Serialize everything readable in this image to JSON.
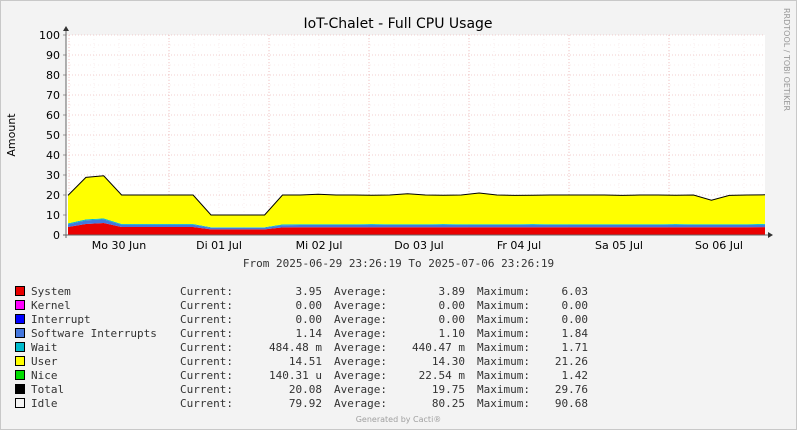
{
  "chart_data": {
    "type": "area",
    "title": "IoT-Chalet - Full CPU Usage",
    "ylabel": "Amount",
    "ylim": [
      0,
      100
    ],
    "yticks": [
      0,
      10,
      20,
      30,
      40,
      50,
      60,
      70,
      80,
      90,
      100
    ],
    "x_ticks": [
      "Mo 30 Jun",
      "Di 01 Jul",
      "Mi 02 Jul",
      "Do 03 Jul",
      "Fr 04 Jul",
      "Sa 05 Jul",
      "So 06 Jul"
    ],
    "x_range": [
      "2025-06-29 23:26:19",
      "2025-07-06 23:26:19"
    ],
    "grid": true,
    "side_text": "RRDTOOL / TOBI OETIKER",
    "series": [
      {
        "name": "System",
        "color": "#ea0000",
        "values": [
          4.0,
          5.5,
          6.0,
          4.0,
          4.0,
          4.0,
          4.0,
          4.0,
          2.8,
          2.8,
          2.8,
          2.8,
          3.8,
          3.9,
          3.9,
          3.9,
          3.9,
          3.9,
          3.9,
          3.9,
          3.9,
          3.9,
          3.9,
          3.9,
          3.9,
          3.9,
          3.9,
          3.9,
          3.9,
          3.9,
          3.9,
          3.9,
          3.9,
          3.9,
          3.9,
          3.9,
          3.9,
          3.9,
          3.9,
          3.95
        ]
      },
      {
        "name": "Kernel",
        "color": "#ff00ff",
        "values": [
          0,
          0,
          0,
          0,
          0,
          0,
          0,
          0,
          0,
          0,
          0,
          0,
          0,
          0,
          0,
          0,
          0,
          0,
          0,
          0,
          0,
          0,
          0,
          0,
          0,
          0,
          0,
          0,
          0,
          0,
          0,
          0,
          0,
          0,
          0,
          0,
          0,
          0,
          0,
          0
        ]
      },
      {
        "name": "Interrupt",
        "color": "#0000ff",
        "values": [
          0,
          0,
          0,
          0,
          0,
          0,
          0,
          0,
          0,
          0,
          0,
          0,
          0,
          0,
          0,
          0,
          0,
          0,
          0,
          0,
          0,
          0,
          0,
          0,
          0,
          0,
          0,
          0,
          0,
          0,
          0,
          0,
          0,
          0,
          0,
          0,
          0,
          0,
          0,
          0
        ]
      },
      {
        "name": "Software Interrupts",
        "color": "#4477dd",
        "values": [
          1.3,
          1.8,
          1.8,
          1.1,
          1.1,
          1.1,
          1.1,
          1.1,
          0.8,
          0.8,
          0.8,
          0.8,
          1.1,
          1.1,
          1.1,
          1.1,
          1.1,
          1.2,
          1.1,
          1.1,
          1.1,
          1.2,
          1.1,
          1.1,
          1.1,
          1.1,
          1.2,
          1.1,
          1.1,
          1.1,
          1.1,
          1.1,
          1.1,
          1.1,
          1.2,
          1.1,
          1.1,
          1.1,
          1.1,
          1.14
        ]
      },
      {
        "name": "Wait",
        "color": "#00bbcc",
        "values": [
          0.5,
          0.5,
          0.5,
          0.4,
          0.4,
          0.4,
          0.4,
          0.4,
          0.3,
          0.3,
          0.3,
          0.3,
          0.4,
          0.4,
          0.4,
          0.4,
          0.4,
          0.4,
          0.4,
          0.4,
          0.4,
          0.4,
          0.4,
          0.4,
          0.4,
          0.4,
          0.4,
          0.4,
          0.4,
          0.4,
          0.4,
          0.4,
          0.4,
          0.4,
          0.4,
          0.4,
          0.4,
          0.4,
          0.4,
          0.48
        ]
      },
      {
        "name": "User",
        "color": "#ffff00",
        "values": [
          14.0,
          21.0,
          21.3,
          14.5,
          14.5,
          14.5,
          14.5,
          14.5,
          6.1,
          6.1,
          6.1,
          6.1,
          14.6,
          14.6,
          15.0,
          14.6,
          14.6,
          14.4,
          14.6,
          15.2,
          14.6,
          14.4,
          14.6,
          15.5,
          14.6,
          14.4,
          14.4,
          14.6,
          14.6,
          14.6,
          14.6,
          14.4,
          14.6,
          14.6,
          14.4,
          14.6,
          12.0,
          14.4,
          14.6,
          14.51
        ]
      },
      {
        "name": "Nice",
        "color": "#00dd00",
        "values": [
          0,
          0,
          0,
          0,
          0,
          0,
          0,
          0,
          0,
          0,
          0,
          0,
          0,
          0,
          0,
          0,
          0,
          0,
          0,
          0,
          0,
          0,
          0,
          0,
          0,
          0,
          0,
          0,
          0,
          0,
          0,
          0,
          0,
          0,
          0,
          0,
          0,
          0,
          0,
          0
        ]
      }
    ],
    "total_line": {
      "name": "Total",
      "color": "#000000",
      "values": [
        19.8,
        28.8,
        29.6,
        20.0,
        20.0,
        20.0,
        20.0,
        20.0,
        10.0,
        10.0,
        10.0,
        10.0,
        20.0,
        20.0,
        20.4,
        20.0,
        20.0,
        19.9,
        20.0,
        20.6,
        20.0,
        19.9,
        20.0,
        21.0,
        20.0,
        19.8,
        19.9,
        20.0,
        20.0,
        20.0,
        20.0,
        19.8,
        20.0,
        20.0,
        19.9,
        20.0,
        17.4,
        19.8,
        20.0,
        20.08
      ]
    }
  },
  "range_text": "From 2025-06-29 23:26:19 To 2025-07-06 23:26:19",
  "legend": [
    {
      "name": "System",
      "color": "#ea0000",
      "cur_label": "Current:",
      "cur": "3.95",
      "avg_label": "Average:",
      "avg": "3.89",
      "max_label": "Maximum:",
      "max": "6.03"
    },
    {
      "name": "Kernel",
      "color": "#ff00ff",
      "cur_label": "Current:",
      "cur": "0.00",
      "avg_label": "Average:",
      "avg": "0.00",
      "max_label": "Maximum:",
      "max": "0.00"
    },
    {
      "name": "Interrupt",
      "color": "#0000ff",
      "cur_label": "Current:",
      "cur": "0.00",
      "avg_label": "Average:",
      "avg": "0.00",
      "max_label": "Maximum:",
      "max": "0.00"
    },
    {
      "name": "Software Interrupts",
      "color": "#4477dd",
      "cur_label": "Current:",
      "cur": "1.14",
      "avg_label": "Average:",
      "avg": "1.10",
      "max_label": "Maximum:",
      "max": "1.84"
    },
    {
      "name": "Wait",
      "color": "#00bbcc",
      "cur_label": "Current:",
      "cur": "484.48 m",
      "avg_label": "Average:",
      "avg": "440.47 m",
      "max_label": "Maximum:",
      "max": "1.71"
    },
    {
      "name": "User",
      "color": "#ffff00",
      "cur_label": "Current:",
      "cur": "14.51",
      "avg_label": "Average:",
      "avg": "14.30",
      "max_label": "Maximum:",
      "max": "21.26"
    },
    {
      "name": "Nice",
      "color": "#00dd00",
      "cur_label": "Current:",
      "cur": "140.31 u",
      "avg_label": "Average:",
      "avg": "22.54 m",
      "max_label": "Maximum:",
      "max": "1.42"
    },
    {
      "name": "Total",
      "color": "#000000",
      "cur_label": "Current:",
      "cur": "20.08",
      "avg_label": "Average:",
      "avg": "19.75",
      "max_label": "Maximum:",
      "max": "29.76"
    },
    {
      "name": "Idle",
      "color": "#f3f3f3",
      "cur_label": "Current:",
      "cur": "79.92",
      "avg_label": "Average:",
      "avg": "80.25",
      "max_label": "Maximum:",
      "max": "90.68"
    }
  ],
  "footer": "Generated by Cacti®"
}
